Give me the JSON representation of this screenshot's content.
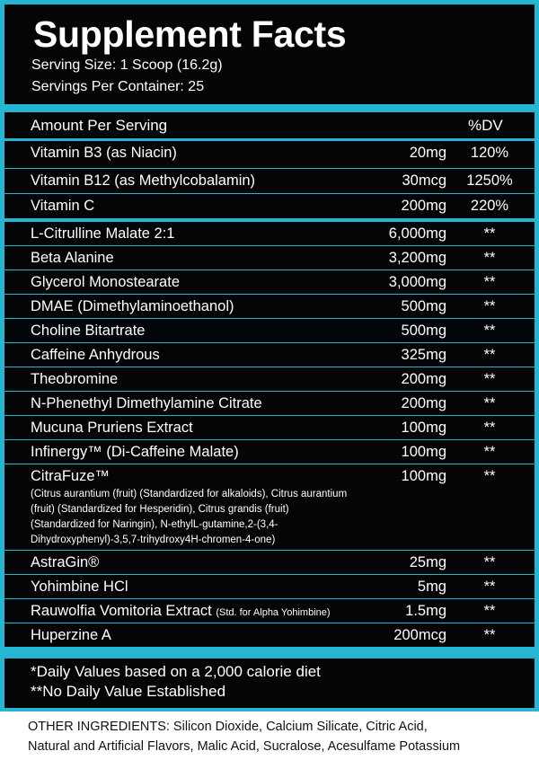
{
  "title": "Supplement Facts",
  "serving_size": "Serving Size: 1 Scoop (16.2g)",
  "servings_per_container": "Servings Per Container: 25",
  "header": {
    "amount_label": "Amount Per Serving",
    "dv_label": "%DV"
  },
  "colors": {
    "accent": "#25b6d3",
    "panel": "#030506"
  },
  "vitamins": [
    {
      "name": "Vitamin B3 (as Niacin)",
      "amount": "20mg",
      "dv": "120%"
    },
    {
      "name": "Vitamin B12 (as Methylcobalamin)",
      "amount": "30mcg",
      "dv": "1250%"
    },
    {
      "name": "Vitamin C",
      "amount": "200mg",
      "dv": "220%"
    }
  ],
  "ingredients": [
    {
      "name": "L-Citrulline Malate 2:1",
      "amount": "6,000mg",
      "dv": "**"
    },
    {
      "name": "Beta Alanine",
      "amount": "3,200mg",
      "dv": "**"
    },
    {
      "name": "Glycerol Monostearate",
      "amount": "3,000mg",
      "dv": "**"
    },
    {
      "name": "DMAE (Dimethylaminoethanol)",
      "amount": "500mg",
      "dv": "**"
    },
    {
      "name": "Choline Bitartrate",
      "amount": "500mg",
      "dv": "**"
    },
    {
      "name": "Caffeine Anhydrous",
      "amount": "325mg",
      "dv": "**"
    },
    {
      "name": "Theobromine",
      "amount": "200mg",
      "dv": "**"
    },
    {
      "name": "N-Phenethyl Dimethylamine Citrate",
      "amount": "200mg",
      "dv": "**"
    },
    {
      "name": "Mucuna Pruriens Extract",
      "amount": "100mg",
      "dv": "**"
    },
    {
      "name": "Infinergy™ (Di-Caffeine Malate)",
      "amount": "100mg",
      "dv": "**"
    },
    {
      "name": "CitraFuze™",
      "amount": "100mg",
      "dv": "**",
      "detail": "(Citrus aurantium (fruit) (Standardized for alkaloids), Citrus aurantium (fruit) (Standardized for Hesperidin), Citrus grandis (fruit) (Standardized for Naringin), N-ethylL-gutamine,2-(3,4-Dihydroxyphenyl)-3,5,7-trihydroxy4H-chromen-4-one)"
    },
    {
      "name": "AstraGin®",
      "amount": "25mg",
      "dv": "**"
    },
    {
      "name": "Yohimbine HCl",
      "amount": "5mg",
      "dv": "**"
    },
    {
      "name": "Rauwolfia Vomitoria Extract",
      "note": "(Std. for Alpha Yohimbine)",
      "amount": "1.5mg",
      "dv": "**"
    },
    {
      "name": "Huperzine A",
      "amount": "200mcg",
      "dv": "**"
    }
  ],
  "footnotes": {
    "dv_note": "*Daily Values based on a 2,000 calorie diet",
    "no_dv_note": "**No Daily Value Established"
  },
  "other_ingredients": {
    "line1": "OTHER INGREDIENTS: Silicon Dioxide, Calcium Silicate, Citric Acid,",
    "line2": "Natural and Artificial Flavors, Malic Acid, Sucralose, Acesulfame Potassium"
  }
}
